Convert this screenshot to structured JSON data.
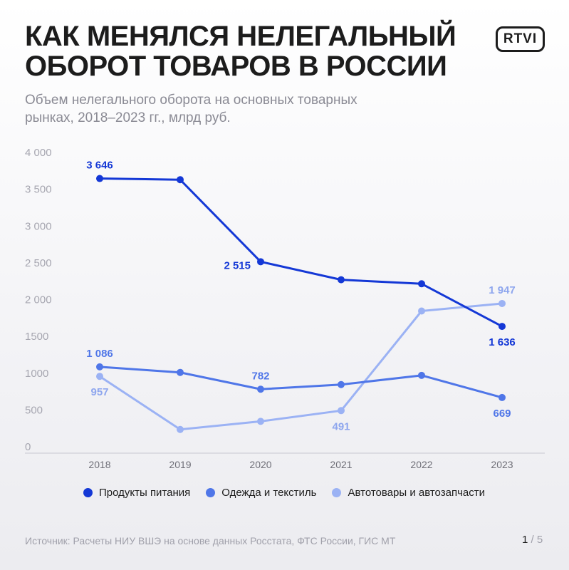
{
  "header": {
    "title": "КАК МЕНЯЛСЯ НЕЛЕГАЛЬНЫЙ ОБОРОТ ТОВАРОВ В РОССИИ",
    "subtitle": "Объем нелегального оборота на основных товарных рынках, 2018–2023 гг., млрд руб.",
    "logo": "RTVI"
  },
  "footer": {
    "source": "Источник: Расчеты НИУ ВШЭ на основе данных Росстата, ФТС России, ГИС МТ",
    "page_current": "1",
    "page_sep": " / ",
    "page_total": "5"
  },
  "chart_data": {
    "type": "line",
    "title": "",
    "xlabel": "",
    "ylabel": "",
    "x": [
      "2018",
      "2019",
      "2020",
      "2021",
      "2022",
      "2023"
    ],
    "ylim": [
      0,
      4000
    ],
    "yticks": [
      0,
      500,
      1000,
      1500,
      2000,
      2500,
      3000,
      3500,
      4000
    ],
    "ytick_labels": [
      "0",
      "500",
      "1000",
      "1500",
      "2 000",
      "2 500",
      "3 000",
      "3 500",
      "4 000"
    ],
    "grid": false,
    "legend_position": "bottom",
    "series": [
      {
        "name": "Продукты питания",
        "color": "#1438d6",
        "values": [
          3646,
          3630,
          2515,
          2270,
          2215,
          1636
        ],
        "labels": [
          {
            "index": 0,
            "text": "3 646",
            "pos": "above"
          },
          {
            "index": 2,
            "text": "2 515",
            "pos": "left"
          },
          {
            "index": 5,
            "text": "1 636",
            "pos": "below"
          }
        ]
      },
      {
        "name": "Одежда и текстиль",
        "color": "#4f76e8",
        "values": [
          1086,
          1010,
          782,
          845,
          970,
          669
        ],
        "labels": [
          {
            "index": 0,
            "text": "1 086",
            "pos": "above"
          },
          {
            "index": 2,
            "text": "782",
            "pos": "above"
          },
          {
            "index": 5,
            "text": "669",
            "pos": "below"
          }
        ]
      },
      {
        "name": "Автотовары и автозапчасти",
        "color": "#9bb2f4",
        "values": [
          957,
          235,
          345,
          491,
          1845,
          1947
        ],
        "labels": [
          {
            "index": 0,
            "text": "957",
            "pos": "below"
          },
          {
            "index": 3,
            "text": "491",
            "pos": "below"
          },
          {
            "index": 5,
            "text": "1 947",
            "pos": "above"
          }
        ]
      }
    ]
  }
}
